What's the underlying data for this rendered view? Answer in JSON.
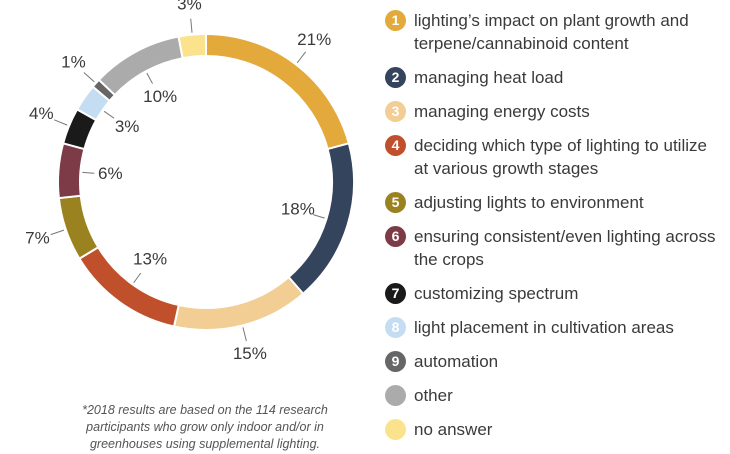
{
  "chart_data": {
    "type": "donut",
    "categories": [
      "lighting’s impact on plant growth and terpene/cannabinoid content",
      "managing heat load",
      "managing energy costs",
      "deciding which type of lighting to utilize at various growth stages",
      "adjusting lights to environment",
      "ensuring consistent/even lighting across the crops",
      "customizing spectrum",
      "light placement in cultivation areas",
      "automation",
      "other",
      "no answer"
    ],
    "markers": [
      "1",
      "2",
      "3",
      "4",
      "5",
      "6",
      "7",
      "8",
      "9",
      null,
      null
    ],
    "values": [
      21,
      18,
      15,
      13,
      7,
      6,
      4,
      3,
      1,
      10,
      3
    ],
    "value_labels": [
      "21%",
      "18%",
      "15%",
      "13%",
      "7%",
      "6%",
      "4%",
      "3%",
      "1%",
      "10%",
      "3%"
    ],
    "colors": [
      "#e3a93a",
      "#34445c",
      "#f2cd94",
      "#c0502c",
      "#9a8220",
      "#7d3b47",
      "#1a1a1a",
      "#c5ddf2",
      "#666666",
      "#ababab",
      "#fbe38e"
    ],
    "note": "*2018 results are based on the 114 research participants who grow only indoor and/or in greenhouses using supplemental lighting."
  }
}
